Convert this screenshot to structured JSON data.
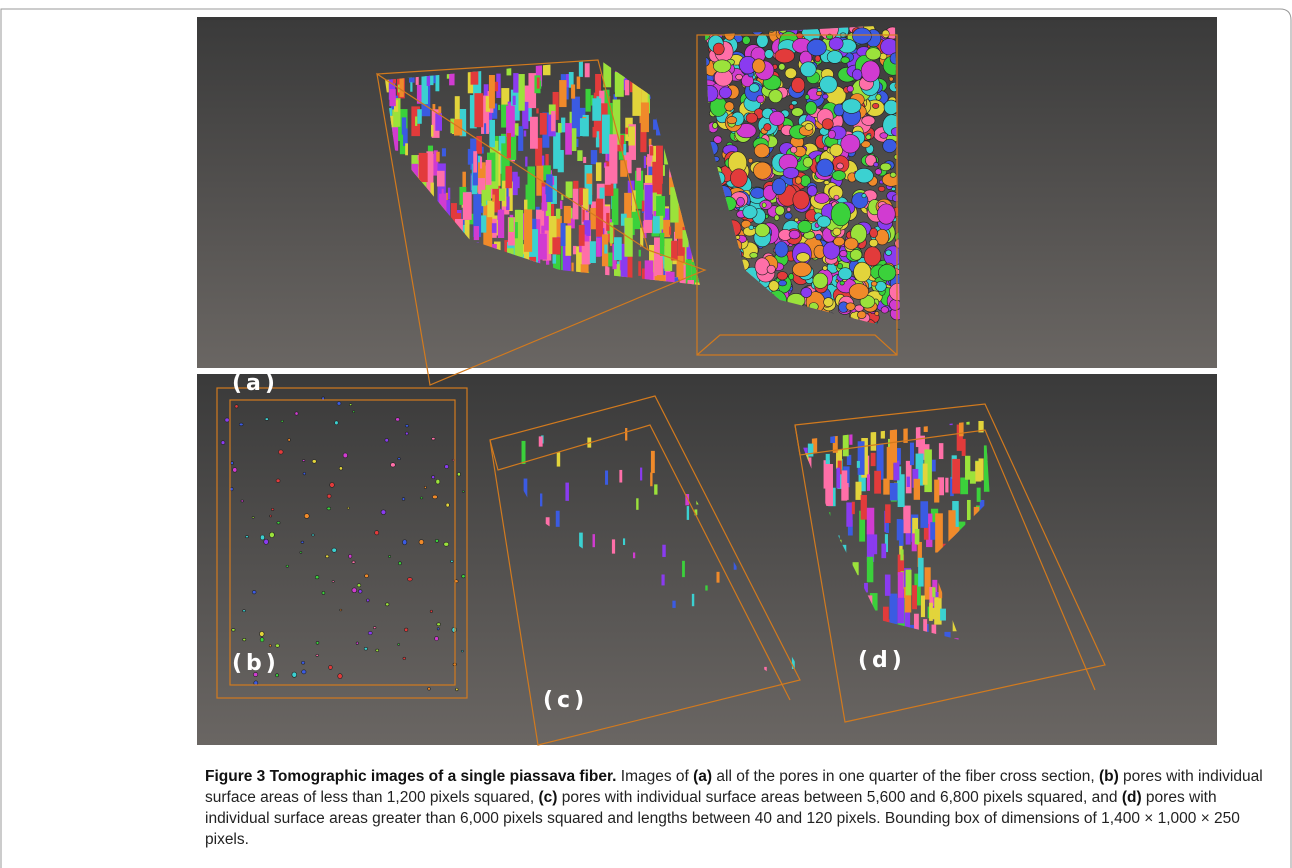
{
  "panels": [
    {
      "label": "(a)"
    },
    {
      "label": "(b)"
    },
    {
      "label": "(c)"
    },
    {
      "label": "(d)"
    }
  ],
  "caption": {
    "segments": [
      {
        "text": "Figure 3 Tomographic images of a single piassava fiber.",
        "bold": true
      },
      {
        "text": " Images of ",
        "bold": false
      },
      {
        "text": "(a)",
        "bold": true
      },
      {
        "text": " all of the pores in one quarter of the fiber cross section, ",
        "bold": false
      },
      {
        "text": "(b)",
        "bold": true
      },
      {
        "text": " pores with individual surface areas of less than 1,200 pixels squared, ",
        "bold": false
      },
      {
        "text": "(c)",
        "bold": true
      },
      {
        "text": " pores with individual surface areas between 5,600 and 6,800 pixels squared, and ",
        "bold": false
      },
      {
        "text": "(d)",
        "bold": true
      },
      {
        "text": " pores with individual surface areas greater than 6,000 pixels squared and lengths between 40 and 120 pixels. Bounding box of dimensions of 1,400 × 1,000 × 250 pixels.",
        "bold": false
      }
    ]
  }
}
